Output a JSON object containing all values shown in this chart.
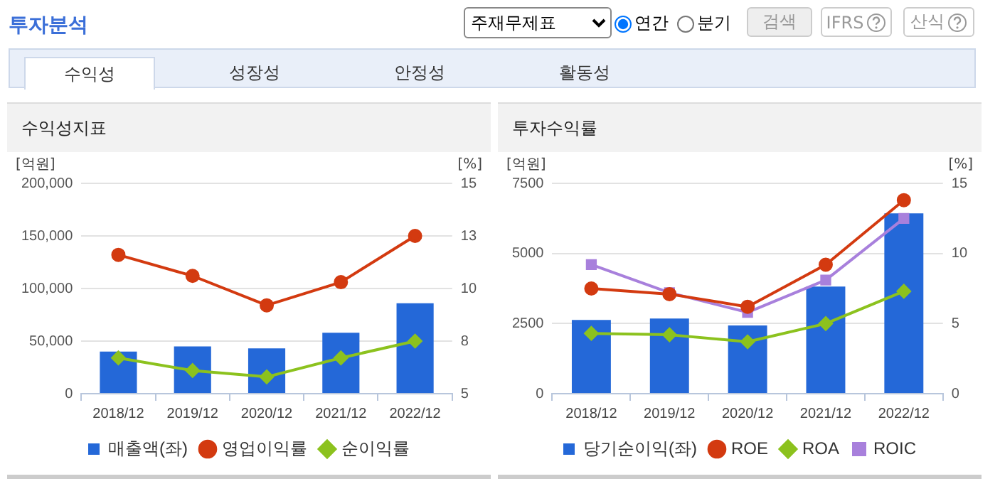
{
  "chart_data": [
    {
      "type": "other",
      "title": "투자분석",
      "annotations": [
        "주재무제표",
        "연간",
        "분기",
        "검색",
        "IFRS",
        "산식",
        "수익성",
        "성장성",
        "안정성",
        "활동성"
      ]
    },
    {
      "type": "bar",
      "title": "수익성지표",
      "categories": [
        "2018/12",
        "2019/12",
        "2020/12",
        "2021/12",
        "2022/12"
      ],
      "series": [
        {
          "name": "매출액(좌)",
          "color": "#2468d8",
          "values": [
            40000,
            45000,
            43000,
            58000,
            86000
          ]
        },
        {
          "name": "영업이익률",
          "type": "line",
          "axis": "y2",
          "marker": "circle",
          "color": "#d33a10",
          "values": [
            11.6,
            10.6,
            9.2,
            10.3,
            12.5
          ]
        },
        {
          "name": "순이익률",
          "type": "line",
          "axis": "y2",
          "marker": "diamond",
          "color": "#8cc21e",
          "values": [
            6.7,
            6.1,
            5.8,
            6.7,
            7.5
          ]
        }
      ],
      "ylabel": "[억원]",
      "y2label": "[%]",
      "ylim": [
        0,
        200000
      ],
      "yticks": [
        {
          "value": 0,
          "label": "0"
        },
        {
          "value": 50000,
          "label": "50,000"
        },
        {
          "value": 100000,
          "label": "100,000"
        },
        {
          "value": 150000,
          "label": "150,000"
        },
        {
          "value": 200000,
          "label": "200,000"
        }
      ],
      "y2lim": [
        5,
        15
      ],
      "y2ticks": [
        5,
        {
          "value": 7.5,
          "label": "8"
        },
        10,
        {
          "value": 12.5,
          "label": "13"
        },
        15
      ],
      "grid": "y",
      "legend": "bottom"
    },
    {
      "type": "bar",
      "title": "투자수익률",
      "categories": [
        "2018/12",
        "2019/12",
        "2020/12",
        "2021/12",
        "2022/12"
      ],
      "series": [
        {
          "name": "당기순이익(좌)",
          "color": "#2468d8",
          "values": [
            2630,
            2680,
            2430,
            3820,
            6430
          ]
        },
        {
          "name": "ROE",
          "type": "line",
          "axis": "y2",
          "marker": "circle",
          "color": "#d33a10",
          "values": [
            7.5,
            7.1,
            6.2,
            9.2,
            13.8
          ]
        },
        {
          "name": "ROA",
          "type": "line",
          "axis": "y2",
          "marker": "diamond",
          "color": "#8cc21e",
          "values": [
            4.3,
            4.2,
            3.7,
            5.0,
            7.3
          ]
        },
        {
          "name": "ROIC",
          "type": "line",
          "axis": "y2",
          "marker": "square",
          "color": "#a880dc",
          "values": [
            9.2,
            7.2,
            5.8,
            8.1,
            12.5
          ]
        }
      ],
      "ylabel": "[억원]",
      "y2label": "[%]",
      "ylim": [
        0,
        7500
      ],
      "yticks": [
        0,
        2500,
        5000,
        7500
      ],
      "y2lim": [
        0,
        15
      ],
      "y2ticks": [
        0,
        5,
        10,
        15
      ],
      "grid": "y",
      "legend": "bottom"
    }
  ]
}
